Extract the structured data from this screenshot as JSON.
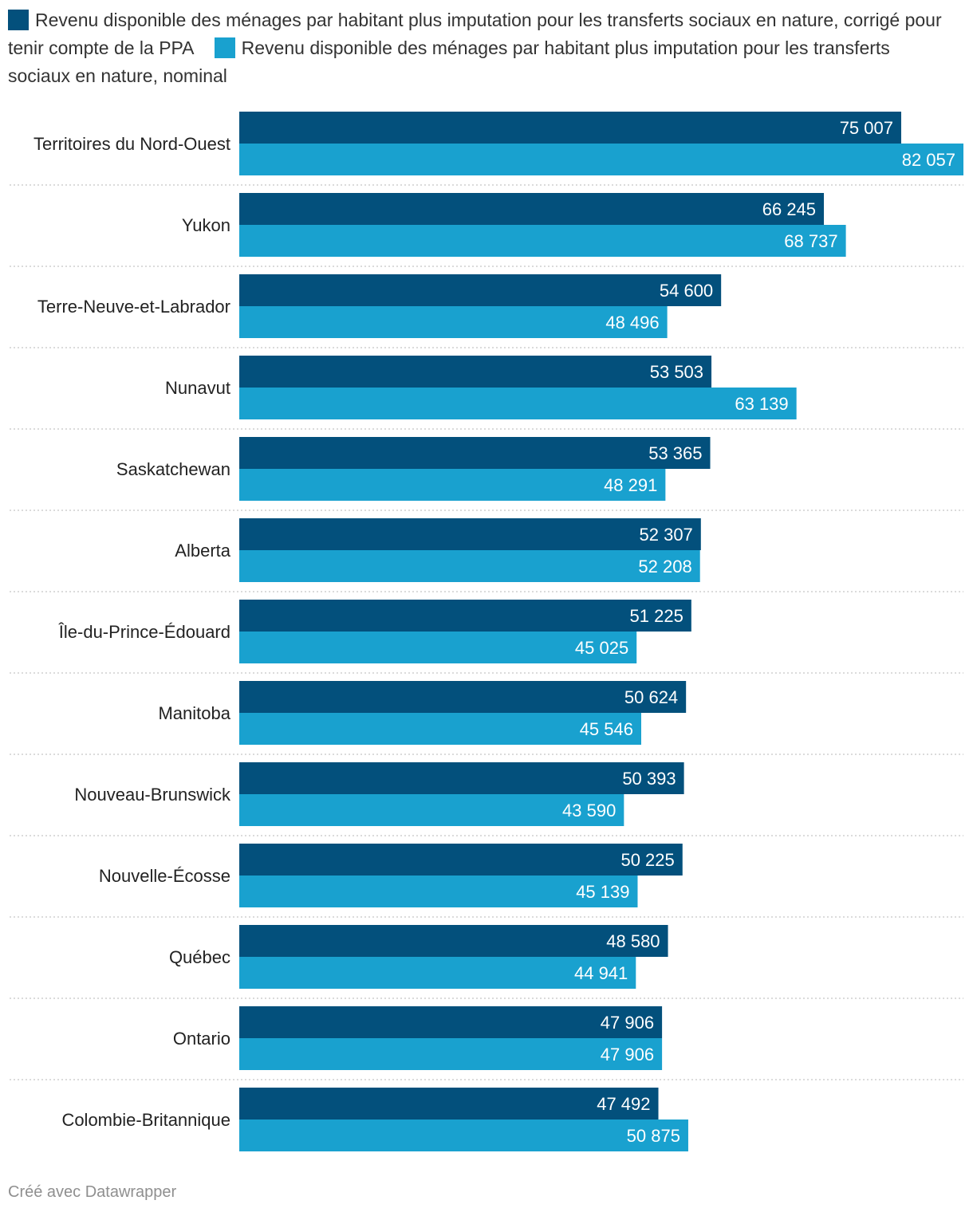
{
  "chart_data": {
    "type": "bar",
    "orientation": "horizontal",
    "title": "",
    "xlabel": "",
    "ylabel": "",
    "xlim": [
      0,
      82057
    ],
    "grid": false,
    "legend_position": "top",
    "categories": [
      "Territoires du Nord-Ouest",
      "Yukon",
      "Terre-Neuve-et-Labrador",
      "Nunavut",
      "Saskatchewan",
      "Alberta",
      "Île-du-Prince-Édouard",
      "Manitoba",
      "Nouveau-Brunswick",
      "Nouvelle-Écosse",
      "Québec",
      "Ontario",
      "Colombie-Britannique"
    ],
    "series": [
      {
        "name": "Revenu disponible des ménages par habitant plus imputation pour les transferts sociaux en nature, corrigé pour tenir compte de la PPA",
        "color": "#03507c",
        "values": [
          75007,
          66245,
          54600,
          53503,
          53365,
          52307,
          51225,
          50624,
          50393,
          50225,
          48580,
          47906,
          47492
        ],
        "labels": [
          "75 007",
          "66 245",
          "54 600",
          "53 503",
          "53 365",
          "52 307",
          "51 225",
          "50 624",
          "50 393",
          "50 225",
          "48 580",
          "47 906",
          "47 492"
        ]
      },
      {
        "name": "Revenu disponible des ménages par habitant plus imputation pour les transferts sociaux en nature, nominal",
        "color": "#19a1cf",
        "values": [
          82057,
          68737,
          48496,
          63139,
          48291,
          52208,
          45025,
          45546,
          43590,
          45139,
          44941,
          47906,
          50875
        ],
        "labels": [
          "82 057",
          "68 737",
          "48 496",
          "63 139",
          "48 291",
          "52 208",
          "45 025",
          "45 546",
          "43 590",
          "45 139",
          "44 941",
          "47 906",
          "50 875"
        ]
      }
    ]
  },
  "footer": "Créé avec Datawrapper"
}
